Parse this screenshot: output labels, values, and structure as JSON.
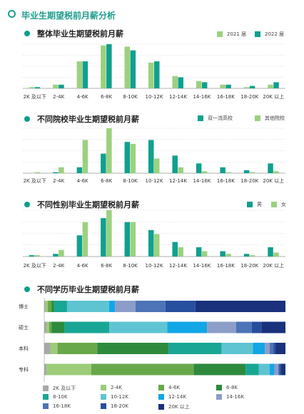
{
  "page": {
    "title": "毕业生期望税前月薪分析"
  },
  "colors": {
    "dark": "#10a08f",
    "light": "#9bd17f",
    "accent": "#1f9e8c",
    "edu": [
      "#a8a8a8",
      "#9ccc78",
      "#69a84a",
      "#2e8b3e",
      "#1aa694",
      "#5fc4d2",
      "#12a6e6",
      "#8c9dc8",
      "#4c74b6",
      "#264f9e",
      "#1a327c"
    ]
  },
  "chart_data": [
    {
      "type": "bar",
      "title": "整体毕业生期望税前月薪",
      "categories": [
        "2K 及以下",
        "2-4K",
        "4-6K",
        "6-8K",
        "8-10K",
        "10-12K",
        "12-14K",
        "14-16K",
        "16-18K",
        "18-20K",
        "20K 以上"
      ],
      "series": [
        {
          "name": "2021 届",
          "values": [
            0.5,
            1.5,
            11.0,
            17.5,
            17.0,
            10.5,
            5.0,
            3.0,
            1.5,
            0.5,
            1.5
          ]
        },
        {
          "name": "2022 届",
          "values": [
            0.5,
            1.5,
            11.0,
            18.0,
            15.5,
            11.0,
            4.5,
            2.5,
            1.5,
            1.0,
            2.5
          ]
        }
      ],
      "ylim": [
        0,
        18
      ]
    },
    {
      "type": "bar",
      "title": "不同院校毕业生期望税前月薪",
      "categories": [
        "2K 及以下",
        "2-4K",
        "4-6K",
        "6-8K",
        "8-10K",
        "10-12K",
        "12-14K",
        "14-16K",
        "16-18K",
        "18-20K",
        "20K 以上"
      ],
      "series": [
        {
          "name": "双一流高校",
          "values": [
            0.0,
            0.5,
            3.0,
            10.0,
            16.0,
            17.0,
            9.0,
            5.0,
            3.0,
            1.5,
            5.0
          ]
        },
        {
          "name": "其他院校",
          "values": [
            0.5,
            3.0,
            17.0,
            23.0,
            15.0,
            7.5,
            3.0,
            1.0,
            0.5,
            0.5,
            1.0
          ]
        }
      ],
      "ylim": [
        0,
        23
      ]
    },
    {
      "type": "bar",
      "title": "不同性别毕业生期望税前月薪",
      "categories": [
        "2K 及以下",
        "2-4K",
        "4-6K",
        "6-8K",
        "8-10K",
        "10-12K",
        "12-14K",
        "14-16K",
        "16-18K",
        "18-20K",
        "20K 以上"
      ],
      "series": [
        {
          "name": "男",
          "values": [
            0.5,
            1.0,
            8.0,
            14.5,
            13.0,
            10.0,
            5.5,
            3.5,
            2.0,
            1.0,
            3.5
          ]
        },
        {
          "name": "女",
          "values": [
            0.5,
            2.5,
            13.0,
            17.5,
            13.0,
            8.5,
            3.5,
            2.0,
            1.0,
            0.5,
            1.5
          ]
        }
      ],
      "ylim": [
        0,
        17.5
      ]
    },
    {
      "type": "bar",
      "title": "不同学历毕业生期望税前月薪",
      "categories": [
        "博士",
        "硕士",
        "本科",
        "专科"
      ],
      "series": [
        {
          "name": "2K 及以下",
          "values": [
            0.5,
            1.0,
            2.5,
            1.0
          ]
        },
        {
          "name": "2-4K",
          "values": [
            1.0,
            1.0,
            3.0,
            18.5
          ]
        },
        {
          "name": "4-6K",
          "values": [
            1.5,
            1.0,
            16.5,
            42.5
          ]
        },
        {
          "name": "6-8K",
          "values": [
            1.0,
            5.5,
            29.5,
            21.5
          ]
        },
        {
          "name": "8-10K",
          "values": [
            5.5,
            18.5,
            22.0,
            5.5
          ]
        },
        {
          "name": "10-12K",
          "values": [
            17.5,
            24.0,
            13.0,
            4.5
          ]
        },
        {
          "name": "12-14K",
          "values": [
            2.5,
            16.5,
            5.0,
            2.0
          ]
        },
        {
          "name": "14-16K",
          "values": [
            8.5,
            12.0,
            2.0,
            1.5
          ]
        },
        {
          "name": "16-18K",
          "values": [
            12.5,
            6.5,
            1.5,
            0.5
          ]
        },
        {
          "name": "18-20K",
          "values": [
            12.5,
            4.0,
            1.0,
            0.5
          ]
        },
        {
          "name": "20K 以上",
          "values": [
            37.5,
            10.0,
            4.0,
            2.0
          ]
        }
      ],
      "xlim": [
        0,
        100
      ]
    }
  ]
}
